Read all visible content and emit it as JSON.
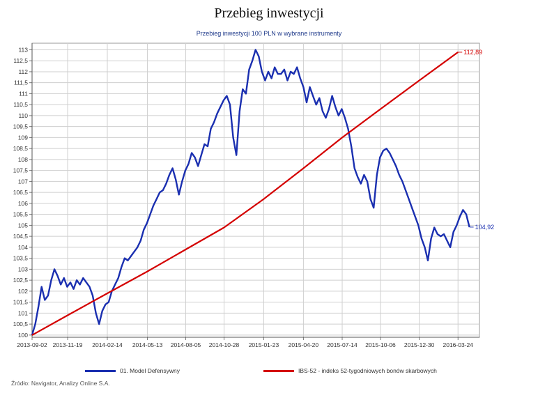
{
  "chart_data": {
    "type": "line",
    "title": "Przebieg inwestycji",
    "subtitle": "Przebieg inwestycji 100 PLN w wybrane instrumenty",
    "xlabel": "",
    "ylabel": "",
    "y_ticks": [
      "100",
      "100,5",
      "101",
      "101,5",
      "102",
      "102,5",
      "103",
      "103,5",
      "104",
      "104,5",
      "105",
      "105,5",
      "106",
      "106,5",
      "107",
      "107,5",
      "108",
      "108,5",
      "109",
      "109,5",
      "110",
      "110,5",
      "111",
      "111,5",
      "112",
      "112,5",
      "113"
    ],
    "ylim": [
      99.9,
      113.3
    ],
    "x_tick_labels": [
      "2013-09-02",
      "2013-11-19",
      "2014-02-14",
      "2014-05-13",
      "2014-08-05",
      "2014-10-28",
      "2015-01-23",
      "2015-04-20",
      "2015-07-14",
      "2015-10-06",
      "2015-12-30",
      "2016-03-24"
    ],
    "xlim": [
      "2013-09-02",
      "2016-05-10"
    ],
    "grid": true,
    "legend_position": "bottom",
    "series": [
      {
        "name": "01. Model Defensywny",
        "color": "#1a2fb0",
        "end_label": "104,92",
        "points": [
          [
            "2013-09-02",
            100.0
          ],
          [
            "2013-09-09",
            100.5
          ],
          [
            "2013-09-16",
            101.3
          ],
          [
            "2013-09-23",
            102.2
          ],
          [
            "2013-09-30",
            101.6
          ],
          [
            "2013-10-07",
            101.8
          ],
          [
            "2013-10-14",
            102.5
          ],
          [
            "2013-10-21",
            103.0
          ],
          [
            "2013-10-28",
            102.7
          ],
          [
            "2013-11-04",
            102.3
          ],
          [
            "2013-11-11",
            102.6
          ],
          [
            "2013-11-18",
            102.2
          ],
          [
            "2013-11-25",
            102.4
          ],
          [
            "2013-12-02",
            102.1
          ],
          [
            "2013-12-09",
            102.5
          ],
          [
            "2013-12-16",
            102.3
          ],
          [
            "2013-12-23",
            102.6
          ],
          [
            "2013-12-30",
            102.4
          ],
          [
            "2014-01-06",
            102.2
          ],
          [
            "2014-01-13",
            101.8
          ],
          [
            "2014-01-20",
            101.0
          ],
          [
            "2014-01-27",
            100.5
          ],
          [
            "2014-02-03",
            101.1
          ],
          [
            "2014-02-10",
            101.4
          ],
          [
            "2014-02-17",
            101.5
          ],
          [
            "2014-02-24",
            102.0
          ],
          [
            "2014-03-03",
            102.3
          ],
          [
            "2014-03-10",
            102.6
          ],
          [
            "2014-03-17",
            103.1
          ],
          [
            "2014-03-24",
            103.5
          ],
          [
            "2014-03-31",
            103.4
          ],
          [
            "2014-04-07",
            103.6
          ],
          [
            "2014-04-14",
            103.8
          ],
          [
            "2014-04-21",
            104.0
          ],
          [
            "2014-04-28",
            104.3
          ],
          [
            "2014-05-05",
            104.8
          ],
          [
            "2014-05-12",
            105.1
          ],
          [
            "2014-05-19",
            105.5
          ],
          [
            "2014-05-26",
            105.9
          ],
          [
            "2014-06-02",
            106.2
          ],
          [
            "2014-06-09",
            106.5
          ],
          [
            "2014-06-16",
            106.6
          ],
          [
            "2014-06-23",
            106.9
          ],
          [
            "2014-06-30",
            107.3
          ],
          [
            "2014-07-07",
            107.6
          ],
          [
            "2014-07-14",
            107.1
          ],
          [
            "2014-07-21",
            106.4
          ],
          [
            "2014-07-28",
            107.0
          ],
          [
            "2014-08-04",
            107.5
          ],
          [
            "2014-08-11",
            107.8
          ],
          [
            "2014-08-18",
            108.3
          ],
          [
            "2014-08-25",
            108.1
          ],
          [
            "2014-09-01",
            107.7
          ],
          [
            "2014-09-08",
            108.2
          ],
          [
            "2014-09-15",
            108.7
          ],
          [
            "2014-09-22",
            108.6
          ],
          [
            "2014-09-29",
            109.4
          ],
          [
            "2014-10-06",
            109.7
          ],
          [
            "2014-10-13",
            110.1
          ],
          [
            "2014-10-20",
            110.4
          ],
          [
            "2014-10-27",
            110.7
          ],
          [
            "2014-11-03",
            110.9
          ],
          [
            "2014-11-10",
            110.5
          ],
          [
            "2014-11-17",
            109.0
          ],
          [
            "2014-11-24",
            108.2
          ],
          [
            "2014-12-01",
            110.2
          ],
          [
            "2014-12-08",
            111.2
          ],
          [
            "2014-12-15",
            111.0
          ],
          [
            "2014-12-22",
            112.1
          ],
          [
            "2014-12-29",
            112.5
          ],
          [
            "2015-01-05",
            113.0
          ],
          [
            "2015-01-12",
            112.7
          ],
          [
            "2015-01-19",
            112.0
          ],
          [
            "2015-01-26",
            111.6
          ],
          [
            "2015-02-02",
            112.0
          ],
          [
            "2015-02-09",
            111.7
          ],
          [
            "2015-02-16",
            112.2
          ],
          [
            "2015-02-23",
            111.9
          ],
          [
            "2015-03-02",
            111.9
          ],
          [
            "2015-03-09",
            112.1
          ],
          [
            "2015-03-16",
            111.6
          ],
          [
            "2015-03-23",
            112.0
          ],
          [
            "2015-03-30",
            111.9
          ],
          [
            "2015-04-06",
            112.2
          ],
          [
            "2015-04-13",
            111.7
          ],
          [
            "2015-04-20",
            111.3
          ],
          [
            "2015-04-27",
            110.6
          ],
          [
            "2015-05-04",
            111.3
          ],
          [
            "2015-05-11",
            110.9
          ],
          [
            "2015-05-18",
            110.5
          ],
          [
            "2015-05-25",
            110.8
          ],
          [
            "2015-06-01",
            110.2
          ],
          [
            "2015-06-08",
            109.9
          ],
          [
            "2015-06-15",
            110.3
          ],
          [
            "2015-06-22",
            110.9
          ],
          [
            "2015-06-29",
            110.4
          ],
          [
            "2015-07-06",
            110.0
          ],
          [
            "2015-07-13",
            110.3
          ],
          [
            "2015-07-20",
            109.9
          ],
          [
            "2015-07-27",
            109.4
          ],
          [
            "2015-08-03",
            108.6
          ],
          [
            "2015-08-10",
            107.6
          ],
          [
            "2015-08-17",
            107.2
          ],
          [
            "2015-08-24",
            106.9
          ],
          [
            "2015-08-31",
            107.3
          ],
          [
            "2015-09-07",
            107.0
          ],
          [
            "2015-09-14",
            106.2
          ],
          [
            "2015-09-21",
            105.8
          ],
          [
            "2015-09-28",
            107.3
          ],
          [
            "2015-10-05",
            108.1
          ],
          [
            "2015-10-12",
            108.4
          ],
          [
            "2015-10-19",
            108.5
          ],
          [
            "2015-10-26",
            108.3
          ],
          [
            "2015-11-02",
            108.0
          ],
          [
            "2015-11-09",
            107.7
          ],
          [
            "2015-11-16",
            107.3
          ],
          [
            "2015-11-23",
            107.0
          ],
          [
            "2015-11-30",
            106.6
          ],
          [
            "2015-12-07",
            106.2
          ],
          [
            "2015-12-14",
            105.8
          ],
          [
            "2015-12-21",
            105.4
          ],
          [
            "2015-12-28",
            105.0
          ],
          [
            "2016-01-04",
            104.4
          ],
          [
            "2016-01-11",
            104.0
          ],
          [
            "2016-01-18",
            103.4
          ],
          [
            "2016-01-25",
            104.4
          ],
          [
            "2016-02-01",
            104.9
          ],
          [
            "2016-02-08",
            104.6
          ],
          [
            "2016-02-15",
            104.5
          ],
          [
            "2016-02-22",
            104.6
          ],
          [
            "2016-02-29",
            104.3
          ],
          [
            "2016-03-07",
            104.0
          ],
          [
            "2016-03-14",
            104.7
          ],
          [
            "2016-03-21",
            105.0
          ],
          [
            "2016-03-28",
            105.4
          ],
          [
            "2016-04-04",
            105.7
          ],
          [
            "2016-04-11",
            105.5
          ],
          [
            "2016-04-18",
            104.92
          ]
        ]
      },
      {
        "name": "IBS-52 - indeks 52-tygodniowych bonów skarbowych",
        "color": "#d40000",
        "end_label": "112,89",
        "points": [
          [
            "2013-09-02",
            100.0
          ],
          [
            "2013-11-19",
            100.9
          ],
          [
            "2014-02-14",
            101.9
          ],
          [
            "2014-05-13",
            102.9
          ],
          [
            "2014-08-05",
            103.9
          ],
          [
            "2014-10-28",
            104.9
          ],
          [
            "2015-01-23",
            106.2
          ],
          [
            "2015-04-20",
            107.6
          ],
          [
            "2015-07-14",
            109.0
          ],
          [
            "2015-10-06",
            110.3
          ],
          [
            "2015-12-30",
            111.6
          ],
          [
            "2016-03-24",
            112.89
          ]
        ]
      }
    ]
  },
  "source": "Źródło: Navigator, Analizy Online S.A."
}
